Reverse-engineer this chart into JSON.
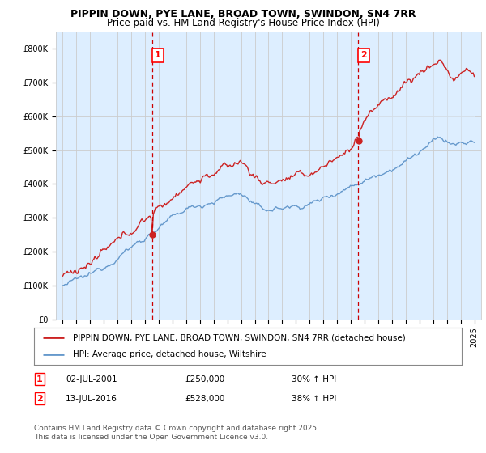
{
  "title": "PIPPIN DOWN, PYE LANE, BROAD TOWN, SWINDON, SN4 7RR",
  "subtitle": "Price paid vs. HM Land Registry's House Price Index (HPI)",
  "ylim": [
    0,
    850000
  ],
  "yticks": [
    0,
    100000,
    200000,
    300000,
    400000,
    500000,
    600000,
    700000,
    800000
  ],
  "ytick_labels": [
    "£0",
    "£100K",
    "£200K",
    "£300K",
    "£400K",
    "£500K",
    "£600K",
    "£700K",
    "£800K"
  ],
  "xlim_start": 1994.5,
  "xlim_end": 2025.5,
  "xticks": [
    1995,
    1996,
    1997,
    1998,
    1999,
    2000,
    2001,
    2002,
    2003,
    2004,
    2005,
    2006,
    2007,
    2008,
    2009,
    2010,
    2011,
    2012,
    2013,
    2014,
    2015,
    2016,
    2017,
    2018,
    2019,
    2020,
    2021,
    2022,
    2023,
    2024,
    2025
  ],
  "hpi_color": "#6699cc",
  "property_color": "#cc2222",
  "vline_color": "#cc0000",
  "fill_color": "#ddeeff",
  "grid_color": "#cccccc",
  "background_color": "#ffffff",
  "plot_bg_color": "#ddeeff",
  "legend_label_property": "PIPPIN DOWN, PYE LANE, BROAD TOWN, SWINDON, SN4 7RR (detached house)",
  "legend_label_hpi": "HPI: Average price, detached house, Wiltshire",
  "marker1_year": 2001.54,
  "marker1_label": "1",
  "marker1_price": 250000,
  "marker1_date": "02-JUL-2001",
  "marker1_hpi": "30% ↑ HPI",
  "marker2_year": 2016.54,
  "marker2_label": "2",
  "marker2_price": 528000,
  "marker2_date": "13-JUL-2016",
  "marker2_hpi": "38% ↑ HPI",
  "footnote": "Contains HM Land Registry data © Crown copyright and database right 2025.\nThis data is licensed under the Open Government Licence v3.0.",
  "title_fontsize": 9,
  "subtitle_fontsize": 8.5,
  "axis_fontsize": 7,
  "legend_fontsize": 7.5,
  "footnote_fontsize": 6.5
}
